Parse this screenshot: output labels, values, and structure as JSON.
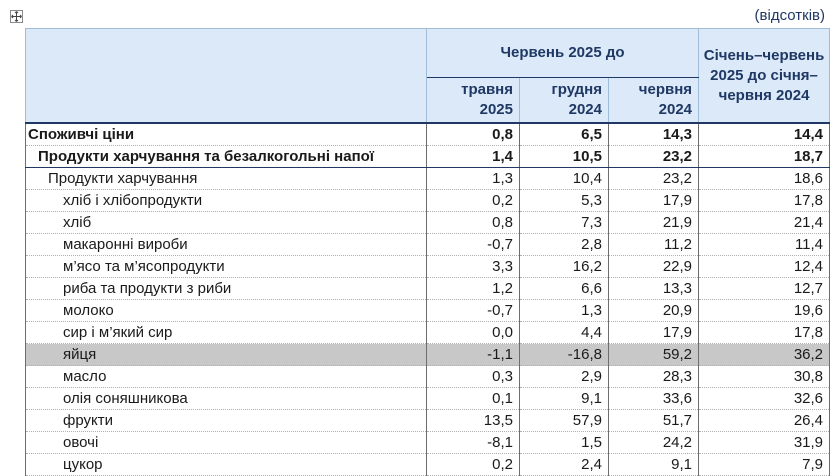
{
  "unit_note": "(відсотків)",
  "header": {
    "group_label": "Червень 2025 до",
    "ytd_label": "Січень–червень 2025 до січня–червня 2024",
    "subcols": [
      "травня 2025",
      "грудня 2024",
      "червня 2024"
    ]
  },
  "rows": [
    {
      "label": "Споживчі ціни",
      "level": 0,
      "values": [
        "0,8",
        "6,5",
        "14,3",
        "14,4"
      ]
    },
    {
      "label": "Продукти харчування та безалкогольні напої",
      "level": 1,
      "values": [
        "1,4",
        "10,5",
        "23,2",
        "18,7"
      ]
    },
    {
      "label": "Продукти харчування",
      "level": 2,
      "values": [
        "1,3",
        "10,4",
        "23,2",
        "18,6"
      ]
    },
    {
      "label": "хліб і хлібопродукти",
      "level": 3,
      "values": [
        "0,2",
        "5,3",
        "17,9",
        "17,8"
      ]
    },
    {
      "label": "хліб",
      "level": 3,
      "values": [
        "0,8",
        "7,3",
        "21,9",
        "21,4"
      ]
    },
    {
      "label": "макаронні вироби",
      "level": 3,
      "values": [
        "-0,7",
        "2,8",
        "11,2",
        "11,4"
      ]
    },
    {
      "label": "м’ясо та м’ясопродукти",
      "level": 3,
      "values": [
        "3,3",
        "16,2",
        "22,9",
        "12,4"
      ]
    },
    {
      "label": "риба та продукти з риби",
      "level": 3,
      "values": [
        "1,2",
        "6,6",
        "13,3",
        "12,7"
      ]
    },
    {
      "label": "молоко",
      "level": 3,
      "values": [
        "-0,7",
        "1,3",
        "20,9",
        "19,6"
      ]
    },
    {
      "label": "сир і м’який сир",
      "level": 3,
      "values": [
        "0,0",
        "4,4",
        "17,9",
        "17,8"
      ]
    },
    {
      "label": "яйця",
      "level": 3,
      "highlight": true,
      "values": [
        "-1,1",
        "-16,8",
        "59,2",
        "36,2"
      ]
    },
    {
      "label": "масло",
      "level": 3,
      "values": [
        "0,3",
        "2,9",
        "28,3",
        "30,8"
      ]
    },
    {
      "label": "олія соняшникова",
      "level": 3,
      "values": [
        "0,1",
        "9,1",
        "33,6",
        "32,6"
      ]
    },
    {
      "label": "фрукти",
      "level": 3,
      "values": [
        "13,5",
        "57,9",
        "51,7",
        "26,4"
      ]
    },
    {
      "label": "овочі",
      "level": 3,
      "values": [
        "-8,1",
        "1,5",
        "24,2",
        "31,9"
      ]
    },
    {
      "label": "цукор",
      "level": 3,
      "values": [
        "0,2",
        "2,4",
        "9,1",
        "7,9"
      ]
    }
  ]
}
